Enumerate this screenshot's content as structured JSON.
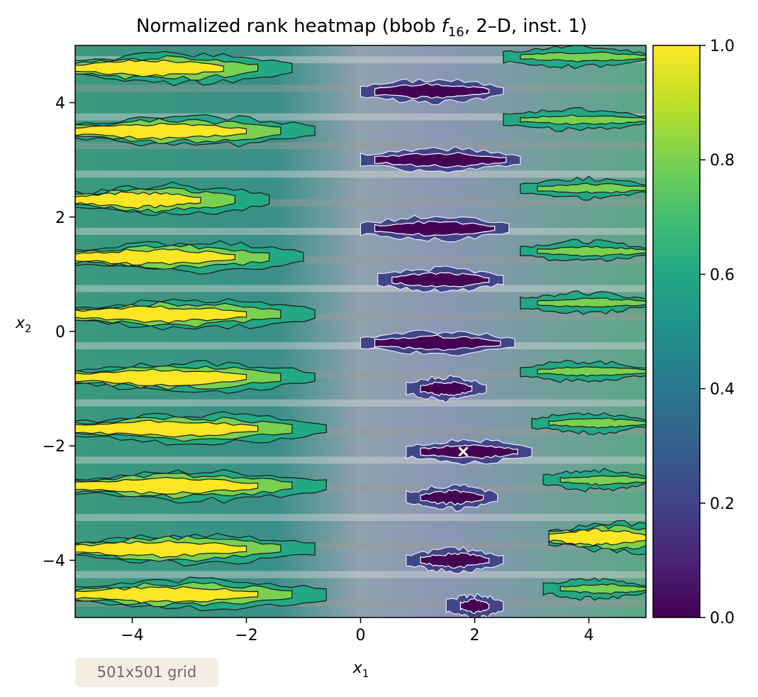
{
  "chart_data": {
    "type": "heatmap",
    "title": "Normalized rank heatmap (bbob f16, 2–D, inst. 1)",
    "title_parts": {
      "before": "Normalized rank heatmap (bbob ",
      "symbol": "f",
      "subscript": "16",
      "after": ", 2–D, inst. 1)"
    },
    "xlabel": "x1",
    "xlabel_parts": {
      "symbol": "x",
      "subscript": "1"
    },
    "ylabel": "x2",
    "ylabel_parts": {
      "symbol": "x",
      "subscript": "2"
    },
    "xlim": [
      -5,
      5
    ],
    "ylim": [
      -5,
      5
    ],
    "x_ticks": [
      {
        "value": -4,
        "label": "−4"
      },
      {
        "value": -2,
        "label": "−2"
      },
      {
        "value": 0,
        "label": "0"
      },
      {
        "value": 2,
        "label": "2"
      },
      {
        "value": 4,
        "label": "4"
      }
    ],
    "y_ticks": [
      {
        "value": 4,
        "label": "4"
      },
      {
        "value": 2,
        "label": "2"
      },
      {
        "value": 0,
        "label": "0"
      },
      {
        "value": -2,
        "label": "−2"
      },
      {
        "value": -4,
        "label": "−4"
      }
    ],
    "colorbar": {
      "range": [
        0,
        1
      ],
      "colormap": "viridis",
      "ticks": [
        {
          "value": 0.0,
          "label": "0.0"
        },
        {
          "value": 0.2,
          "label": "0.2"
        },
        {
          "value": 0.4,
          "label": "0.4"
        },
        {
          "value": 0.6,
          "label": "0.6"
        },
        {
          "value": 0.8,
          "label": "0.8"
        },
        {
          "value": 1.0,
          "label": "1.0"
        }
      ]
    },
    "yellow_bands": [
      {
        "y": 4.6,
        "x_from": -5,
        "x_to": -2.4
      },
      {
        "y": 3.5,
        "x_from": -5,
        "x_to": -2.0
      },
      {
        "y": 2.3,
        "x_from": -5,
        "x_to": -2.8
      },
      {
        "y": 1.3,
        "x_from": -5,
        "x_to": -2.2
      },
      {
        "y": 0.3,
        "x_from": -5,
        "x_to": -2.0
      },
      {
        "y": -0.8,
        "x_from": -5,
        "x_to": -2.0
      },
      {
        "y": -1.7,
        "x_from": -5,
        "x_to": -1.8
      },
      {
        "y": -2.7,
        "x_from": -5,
        "x_to": -1.8
      },
      {
        "y": -3.8,
        "x_from": -5,
        "x_to": -2.0
      },
      {
        "y": -4.6,
        "x_from": -5,
        "x_to": -1.8
      },
      {
        "y": -3.6,
        "x_from": 3.3,
        "x_to": 5
      }
    ],
    "purple_bands": [
      {
        "y": 4.2,
        "x_from": 0,
        "x_to": 2.5
      },
      {
        "y": 3.0,
        "x_from": 0,
        "x_to": 2.8
      },
      {
        "y": 1.8,
        "x_from": 0,
        "x_to": 2.6
      },
      {
        "y": 0.9,
        "x_from": 0.3,
        "x_to": 2.5
      },
      {
        "y": -0.2,
        "x_from": 0,
        "x_to": 2.7
      },
      {
        "y": -1.0,
        "x_from": 0.8,
        "x_to": 2.2
      },
      {
        "y": -2.1,
        "x_from": 0.8,
        "x_to": 3.0
      },
      {
        "y": -2.9,
        "x_from": 0.8,
        "x_to": 2.4
      },
      {
        "y": -4.0,
        "x_from": 0.8,
        "x_to": 2.5
      },
      {
        "y": -4.8,
        "x_from": 1.5,
        "x_to": 2.5
      }
    ],
    "right_green_bands": [
      {
        "y": 4.8,
        "x_from": 2.5,
        "x_to": 5
      },
      {
        "y": 3.7,
        "x_from": 2.5,
        "x_to": 5
      },
      {
        "y": 2.5,
        "x_from": 2.8,
        "x_to": 5
      },
      {
        "y": 1.4,
        "x_from": 2.8,
        "x_to": 5
      },
      {
        "y": 0.5,
        "x_from": 2.8,
        "x_to": 5
      },
      {
        "y": -0.7,
        "x_from": 2.8,
        "x_to": 5
      },
      {
        "y": -1.6,
        "x_from": 3.0,
        "x_to": 5
      },
      {
        "y": -2.6,
        "x_from": 3.2,
        "x_to": 5
      },
      {
        "y": -4.5,
        "x_from": 3.2,
        "x_to": 5
      }
    ],
    "marker": {
      "x": 1.8,
      "y": -2.1,
      "symbol": "x"
    },
    "legend": "none",
    "grid": false
  },
  "annotation": {
    "text": "501x501 grid"
  },
  "colors": {
    "yellow": "#fde725",
    "lime": "#7ad151",
    "green": "#22a884",
    "teal": "#2a788e",
    "blue": "#414487",
    "purple": "#440154",
    "grey_band": "#c9c9c9",
    "annotation_bg": "#f6ede2",
    "annotation_text": "#6b6b6b"
  }
}
